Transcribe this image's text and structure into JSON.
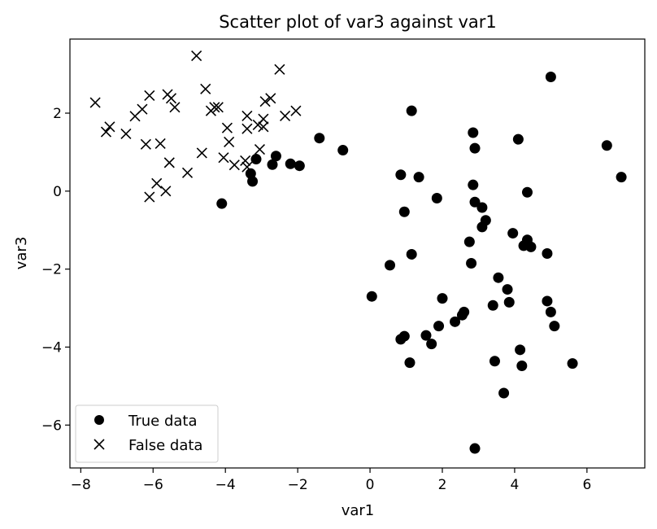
{
  "chart_data": {
    "type": "scatter",
    "title": "Scatter plot of var3 against var1",
    "xlabel": "var1",
    "ylabel": "var3",
    "xlim": [
      -8.3,
      7.6
    ],
    "ylim": [
      -7.1,
      3.9
    ],
    "xticks": [
      -8,
      -6,
      -4,
      -2,
      0,
      2,
      4,
      6
    ],
    "yticks": [
      -6,
      -4,
      -2,
      0,
      2
    ],
    "grid": false,
    "legend_position": "lower-left",
    "marker_color": "#000000",
    "series": [
      {
        "name": "True data",
        "marker": "circle",
        "points": [
          [
            -4.1,
            -0.32
          ],
          [
            -3.3,
            0.45
          ],
          [
            -3.25,
            0.25
          ],
          [
            -3.15,
            0.82
          ],
          [
            -2.7,
            0.68
          ],
          [
            -2.6,
            0.9
          ],
          [
            -2.2,
            0.7
          ],
          [
            -1.95,
            0.65
          ],
          [
            -1.4,
            1.36
          ],
          [
            -0.75,
            1.05
          ],
          [
            0.05,
            -2.7
          ],
          [
            0.55,
            -1.9
          ],
          [
            0.85,
            0.42
          ],
          [
            0.85,
            -3.8
          ],
          [
            0.95,
            -0.53
          ],
          [
            0.95,
            -3.72
          ],
          [
            1.1,
            -4.4
          ],
          [
            1.15,
            2.06
          ],
          [
            1.15,
            -1.62
          ],
          [
            1.35,
            0.36
          ],
          [
            1.55,
            -3.7
          ],
          [
            1.7,
            -3.92
          ],
          [
            1.85,
            -0.18
          ],
          [
            1.9,
            -3.46
          ],
          [
            2.0,
            -2.75
          ],
          [
            2.35,
            -3.35
          ],
          [
            2.55,
            -3.18
          ],
          [
            2.6,
            -3.1
          ],
          [
            2.75,
            -1.3
          ],
          [
            2.8,
            -1.85
          ],
          [
            2.85,
            1.5
          ],
          [
            2.85,
            0.16
          ],
          [
            2.9,
            1.1
          ],
          [
            2.9,
            -0.28
          ],
          [
            2.9,
            -6.6
          ],
          [
            3.1,
            -0.42
          ],
          [
            3.1,
            -0.92
          ],
          [
            3.2,
            -0.75
          ],
          [
            3.4,
            -2.93
          ],
          [
            3.45,
            -4.36
          ],
          [
            3.55,
            -2.22
          ],
          [
            3.7,
            -5.18
          ],
          [
            3.8,
            -2.52
          ],
          [
            3.85,
            -2.85
          ],
          [
            3.95,
            -1.08
          ],
          [
            4.1,
            1.33
          ],
          [
            4.15,
            -4.07
          ],
          [
            4.2,
            -4.48
          ],
          [
            4.25,
            -1.4
          ],
          [
            4.35,
            -1.25
          ],
          [
            4.35,
            -0.03
          ],
          [
            4.45,
            -1.43
          ],
          [
            4.9,
            -1.6
          ],
          [
            4.9,
            -2.82
          ],
          [
            5.0,
            -3.1
          ],
          [
            5.0,
            2.93
          ],
          [
            5.1,
            -3.46
          ],
          [
            5.6,
            -4.42
          ],
          [
            6.55,
            1.17
          ],
          [
            6.95,
            0.36
          ]
        ]
      },
      {
        "name": "False data",
        "marker": "x",
        "points": [
          [
            -7.6,
            2.27
          ],
          [
            -7.3,
            1.52
          ],
          [
            -7.2,
            1.65
          ],
          [
            -6.75,
            1.47
          ],
          [
            -6.5,
            1.92
          ],
          [
            -6.3,
            2.1
          ],
          [
            -6.2,
            1.2
          ],
          [
            -6.1,
            2.45
          ],
          [
            -6.1,
            -0.15
          ],
          [
            -5.9,
            0.2
          ],
          [
            -5.8,
            1.22
          ],
          [
            -5.65,
            0.0
          ],
          [
            -5.6,
            2.48
          ],
          [
            -5.55,
            0.73
          ],
          [
            -5.5,
            2.38
          ],
          [
            -5.4,
            2.15
          ],
          [
            -5.05,
            0.47
          ],
          [
            -4.8,
            3.47
          ],
          [
            -4.65,
            0.98
          ],
          [
            -4.55,
            2.62
          ],
          [
            -4.4,
            2.06
          ],
          [
            -4.3,
            2.15
          ],
          [
            -4.2,
            2.15
          ],
          [
            -4.05,
            0.86
          ],
          [
            -3.95,
            1.62
          ],
          [
            -3.9,
            1.26
          ],
          [
            -3.75,
            0.67
          ],
          [
            -3.45,
            0.78
          ],
          [
            -3.4,
            1.93
          ],
          [
            -3.4,
            0.62
          ],
          [
            -3.4,
            1.6
          ],
          [
            -3.1,
            1.7
          ],
          [
            -3.05,
            1.07
          ],
          [
            -2.95,
            1.65
          ],
          [
            -2.95,
            1.85
          ],
          [
            -2.9,
            2.3
          ],
          [
            -2.75,
            2.38
          ],
          [
            -2.5,
            3.12
          ],
          [
            -2.35,
            1.93
          ],
          [
            -2.05,
            2.06
          ]
        ]
      }
    ],
    "legend": [
      "True data",
      "False data"
    ]
  }
}
